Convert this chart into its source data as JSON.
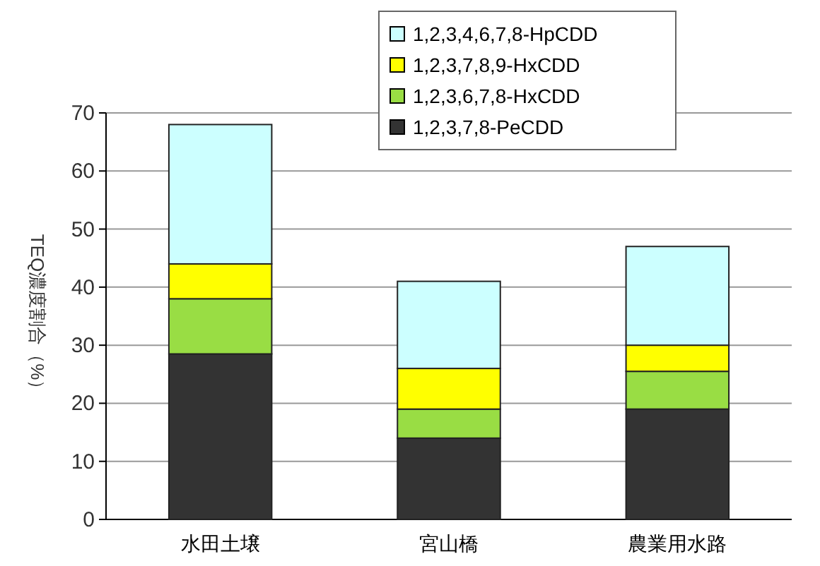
{
  "chart_data": {
    "type": "bar",
    "stacked": true,
    "ylabel": "TEQ濃度割合（%）",
    "categories": [
      "水田土壌",
      "宮山橋",
      "農業用水路"
    ],
    "series": [
      {
        "name": "1,2,3,7,8-PeCDD",
        "color": "#333333",
        "values": [
          28.5,
          14,
          19
        ]
      },
      {
        "name": "1,2,3,6,7,8-HxCDD",
        "color": "#99dd44",
        "values": [
          9.5,
          5,
          6.5
        ]
      },
      {
        "name": "1,2,3,7,8,9-HxCDD",
        "color": "#ffff00",
        "values": [
          6,
          7,
          4.5
        ]
      },
      {
        "name": "1,2,3,4,6,7,8-HpCDD",
        "color": "#ccffff",
        "values": [
          24,
          15,
          17
        ]
      }
    ],
    "ylim": [
      0,
      70
    ],
    "yticks": [
      0,
      10,
      20,
      30,
      40,
      50,
      60,
      70
    ],
    "grid": "y",
    "legend": "top"
  }
}
